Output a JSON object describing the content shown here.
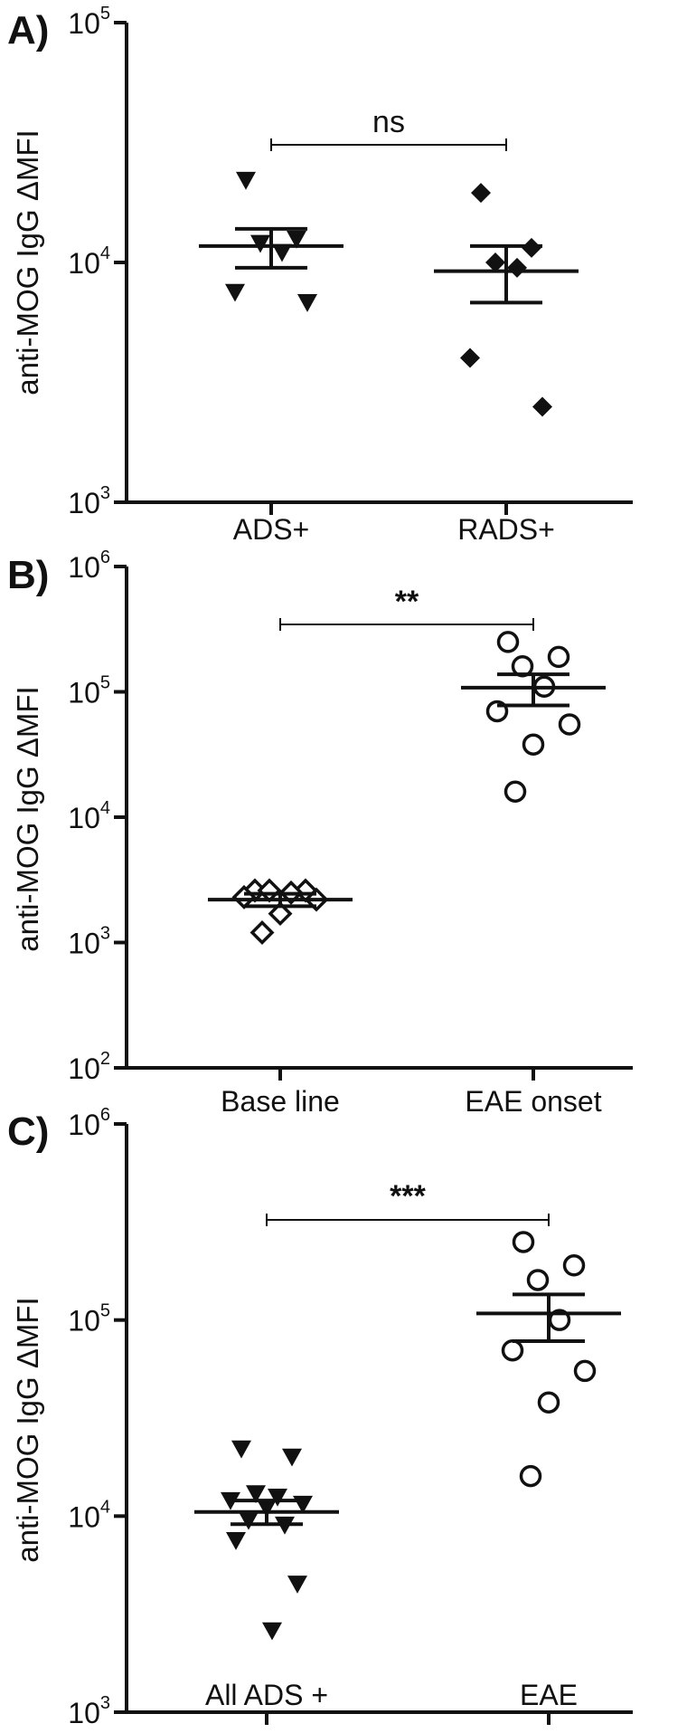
{
  "chart_data": [
    {
      "type": "scatter",
      "panel_label": "A)",
      "ylabel": "anti-MOG IgG ΔMFI",
      "yscale": "log",
      "ylim": [
        1000,
        100000
      ],
      "yticks": [
        {
          "base": "10",
          "exp": "3",
          "value": 1000
        },
        {
          "base": "10",
          "exp": "4",
          "value": 10000
        },
        {
          "base": "10",
          "exp": "5",
          "value": 100000
        }
      ],
      "categories": [
        "ADS+",
        "RADS+"
      ],
      "groups": [
        {
          "category": "ADS+",
          "marker": "triangle-down-filled",
          "values": [
            22000,
            12500,
            12000,
            11000,
            7500,
            6800
          ],
          "mean": 11700,
          "sem_low": 9500,
          "sem_high": 13800
        },
        {
          "category": "RADS+",
          "marker": "diamond-filled",
          "values": [
            19500,
            11500,
            10000,
            9500,
            4000,
            2500
          ],
          "mean": 9200,
          "sem_low": 6800,
          "sem_high": 11700
        }
      ],
      "significance": {
        "text": "ns",
        "from": "ADS+",
        "to": "RADS+"
      }
    },
    {
      "type": "scatter",
      "panel_label": "B)",
      "ylabel": "anti-MOG IgG ΔMFI",
      "yscale": "log",
      "ylim": [
        100,
        1000000
      ],
      "yticks": [
        {
          "base": "10",
          "exp": "2",
          "value": 100
        },
        {
          "base": "10",
          "exp": "3",
          "value": 1000
        },
        {
          "base": "10",
          "exp": "4",
          "value": 10000
        },
        {
          "base": "10",
          "exp": "5",
          "value": 100000
        },
        {
          "base": "10",
          "exp": "6",
          "value": 1000000
        }
      ],
      "categories": [
        "Base line",
        "EAE onset"
      ],
      "groups": [
        {
          "category": "Base line",
          "marker": "diamond-open",
          "values": [
            2600,
            2600,
            2600,
            2500,
            2300,
            2200,
            1700,
            1200
          ],
          "mean": 2200,
          "sem_low": 1950,
          "sem_high": 2450
        },
        {
          "category": "EAE onset",
          "marker": "circle-open",
          "values": [
            250000,
            190000,
            160000,
            110000,
            70000,
            55000,
            38000,
            16000
          ],
          "mean": 108000,
          "sem_low": 78000,
          "sem_high": 138000
        }
      ],
      "significance": {
        "text": "**",
        "from": "Base line",
        "to": "EAE onset"
      }
    },
    {
      "type": "scatter",
      "panel_label": "C)",
      "ylabel": "anti-MOG IgG ΔMFI",
      "yscale": "log",
      "ylim": [
        1000,
        1000000
      ],
      "yticks": [
        {
          "base": "10",
          "exp": "3",
          "value": 1000
        },
        {
          "base": "10",
          "exp": "4",
          "value": 10000
        },
        {
          "base": "10",
          "exp": "5",
          "value": 100000
        },
        {
          "base": "10",
          "exp": "6",
          "value": 1000000
        }
      ],
      "categories": [
        "All ADS +",
        "EAE"
      ],
      "groups": [
        {
          "category": "All ADS +",
          "marker": "triangle-down-filled",
          "values": [
            22000,
            20000,
            13000,
            12500,
            12000,
            11500,
            11000,
            9500,
            9000,
            7500,
            4500,
            2600
          ],
          "mean": 10500,
          "sem_low": 9100,
          "sem_high": 12000
        },
        {
          "category": "EAE",
          "marker": "circle-open",
          "values": [
            250000,
            190000,
            160000,
            100000,
            70000,
            55000,
            38000,
            16000
          ],
          "mean": 108000,
          "sem_low": 78000,
          "sem_high": 135000
        }
      ],
      "significance": {
        "text": "***",
        "from": "All ADS +",
        "to": "EAE"
      }
    }
  ]
}
